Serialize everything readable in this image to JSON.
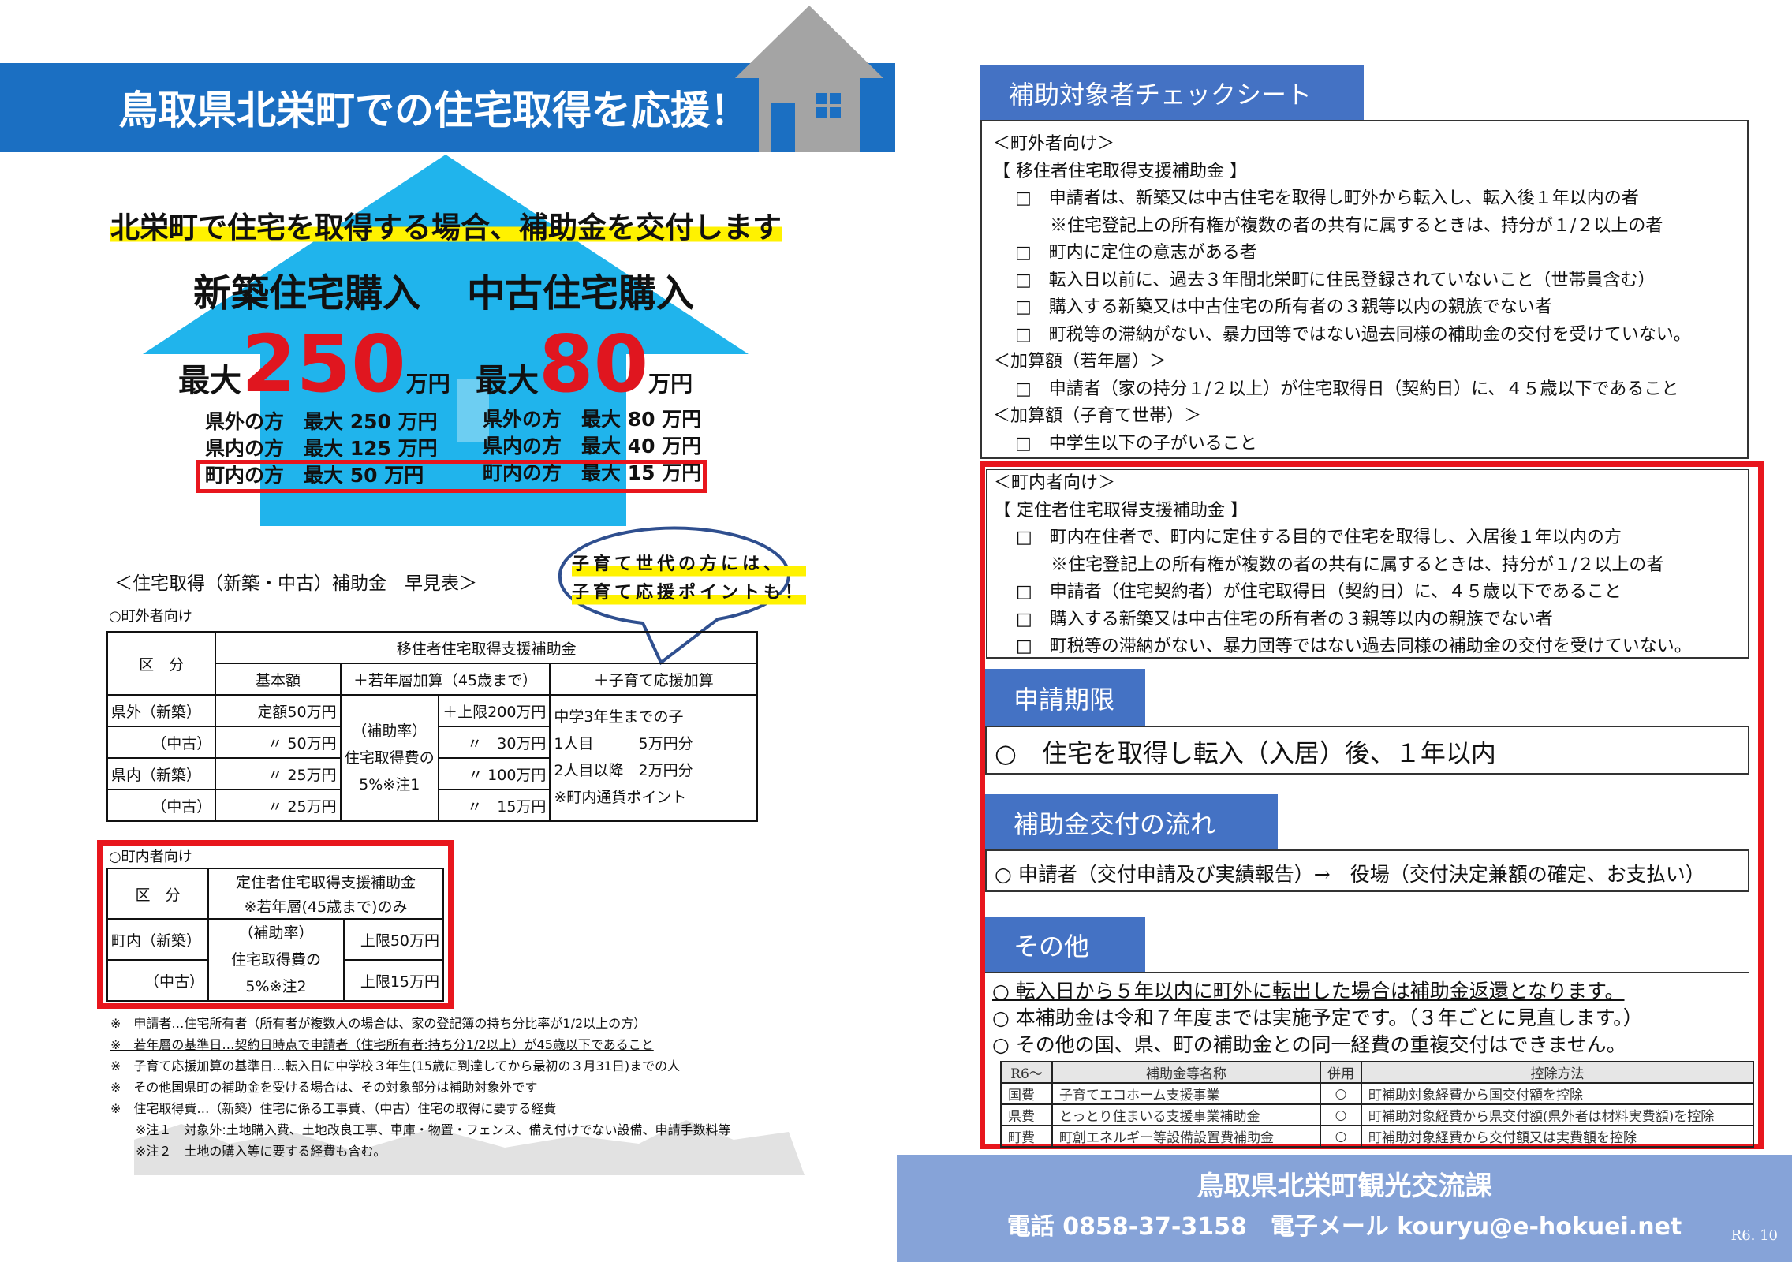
{
  "left": {
    "title": "鳥取県北栄町での住宅取得を応援！",
    "headline": "北栄町で住宅を取得する場合、補助金を交付します",
    "new_label": "新築住宅購入",
    "used_label": "中古住宅購入",
    "max_prefix": "最大",
    "new_max": "250",
    "used_max": "80",
    "unit": "万円",
    "new_details": [
      "県外の方　最大 250 万円",
      "県内の方　最大 125 万円",
      "町内の方　最大  50 万円"
    ],
    "used_details": [
      "県外の方　最大 80 万円",
      "県内の方　最大 40 万円",
      "町内の方　最大 15 万円"
    ],
    "quick_title": "＜住宅取得（新築・中古）補助金　早見表＞",
    "bubble": [
      "子育て世代の方には、",
      "子育て応援ポイントも！"
    ],
    "outside_label": "○町外者向け",
    "table1": {
      "kubun": "区　分",
      "program": "移住者住宅取得支援補助金",
      "cols": [
        "基本額",
        "＋若年層加算（45歳まで）",
        "＋子育て応援加算"
      ],
      "rows": [
        {
          "label": "県外（新築）",
          "base": "定額50万円",
          "young": "＋上限200万円"
        },
        {
          "label": "（中古）",
          "base": "〃 50万円",
          "young": "〃　30万円"
        },
        {
          "label": "県内（新築）",
          "base": "〃 25万円",
          "young": "〃 100万円"
        },
        {
          "label": "（中古）",
          "base": "〃 25万円",
          "young": "〃　15万円"
        }
      ],
      "rate": [
        "（補助率）",
        "住宅取得費の",
        "5%※注1"
      ],
      "child": [
        "中学3年生までの子",
        "1人目　　　5万円分",
        "2人目以降　2万円分",
        "※町内通貨ポイント"
      ]
    },
    "inside_label": "○町内者向け",
    "table2": {
      "kubun": "区　分",
      "program": "定住者住宅取得支援補助金",
      "program_note": "※若年層(45歳まで)のみ",
      "rows": [
        {
          "label": "町内（新築）",
          "limit": "上限50万円"
        },
        {
          "label": "（中古）",
          "limit": "上限15万円"
        }
      ],
      "rate": [
        "（補助率）",
        "住宅取得費の",
        "5%※注2"
      ]
    },
    "notes": [
      "※　申請者…住宅所有者（所有者が複数人の場合は、家の登記簿の持ち分比率が1/2以上の方）",
      "※　若年層の基準日…契約日時点で申請者（住宅所有者:持ち分1/2以上）が45歳以下であること",
      "※　子育て応援加算の基準日…転入日に中学校３年生(15歳に到達してから最初の３月31日)までの人",
      "※　その他国県町の補助金を受ける場合は、その対象部分は補助対象外です",
      "※　住宅取得費…（新築）住宅に係る工事費、（中古）住宅の取得に要する経費",
      "　　※注１　対象外:土地購入費、土地改良工事、車庫・物置・フェンス、備え付けでない設備、申請手数料等",
      "　　※注２　土地の購入等に要する経費も含む。"
    ]
  },
  "right": {
    "check_title": "補助対象者チェックシート",
    "outside": {
      "heading": "＜町外者向け＞",
      "program": "【 移住者住宅取得支援補助金 】",
      "items": [
        "□　申請者は、新築又は中古住宅を取得し町外から転入し、転入後１年以内の者",
        "　　※住宅登記上の所有権が複数の者の共有に属するときは、持分が１/２以上の者",
        "□　町内に定住の意志がある者",
        "□　転入日以前に、過去３年間北栄町に住民登録されていないこと（世帯員含む）",
        "□　購入する新築又は中古住宅の所有者の３親等以内の親族でない者",
        "□　町税等の滞納がない、暴力団等ではない過去同様の補助金の交付を受けていない。"
      ],
      "young_heading": "＜加算額（若年層）＞",
      "young_item": "□　申請者（家の持分１/２以上）が住宅取得日（契約日）に、４５歳以下であること",
      "child_heading": "＜加算額（子育て世帯）＞",
      "child_item": "□　中学生以下の子がいること"
    },
    "inside": {
      "heading": "＜町内者向け＞",
      "program": "【 定住者住宅取得支援補助金 】",
      "items": [
        "□　町内在住者で、町内に定住する目的で住宅を取得し、入居後１年以内の方",
        "　　※住宅登記上の所有権が複数の者の共有に属するときは、持分が１/２以上の者",
        "□　申請者（住宅契約者）が住宅取得日（契約日）に、４５歳以下であること",
        "□　購入する新築又は中古住宅の所有者の３親等以内の親族でない者",
        "□　町税等の滞納がない、暴力団等ではない過去同様の補助金の交付を受けていない。"
      ]
    },
    "deadline": {
      "title": "申請期限",
      "text": "○　住宅を取得し転入（入居）後、１年以内"
    },
    "flow": {
      "title": "補助金交付の流れ",
      "text": "○ 申請者（交付申請及び実績報告）→　役場（交付決定兼額の確定、お支払い）"
    },
    "other": {
      "title": "その他",
      "lines": [
        "○ 転入日から５年以内に町外に転出した場合は補助金返還となります。",
        "○ 本補助金は令和７年度までは実施予定です。（３年ごとに見直します。）",
        "○ その他の国、県、町の補助金との同一経費の重複交付はできません。"
      ],
      "table": {
        "headers": [
          "R6～",
          "補助金等名称",
          "併用",
          "控除方法"
        ],
        "rows": [
          [
            "国費",
            "子育てエコホーム支援事業",
            "○",
            "町補助対象経費から国交付額を控除"
          ],
          [
            "県費",
            "とっとり住まいる支援事業補助金",
            "○",
            "町補助対象経費から県交付額(県外者は材料実費額)を控除"
          ],
          [
            "町費",
            "町創エネルギー等設備設置費補助金",
            "○",
            "町補助対象経費から交付額又は実費額を控除"
          ]
        ]
      }
    },
    "footer": {
      "dept": "鳥取県北栄町観光交流課",
      "contact": "電話 0858-37-3158　電子メール kouryu@e-hokuei.net",
      "date": "R6. 10"
    }
  },
  "colors": {
    "banner": "#1b6fc2",
    "arrow": "#20b4ec",
    "highlight": "#fff200",
    "red": "#e0161f",
    "tab": "#4472c4",
    "footer": "#86a3d8",
    "house": "#a4a4a4"
  }
}
